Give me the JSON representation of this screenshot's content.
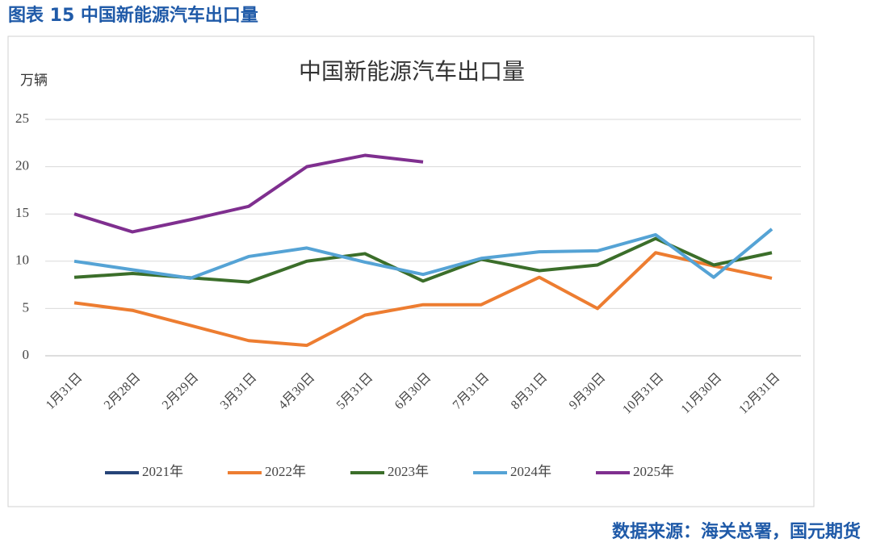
{
  "caption": "图表 15 中国新能源汽车出口量",
  "source": "数据来源：海关总署，国元期货",
  "chart_data": {
    "type": "line",
    "title": "中国新能源汽车出口量",
    "y_label": "万辆",
    "categories": [
      "1月31日",
      "2月28日",
      "2月29日",
      "3月31日",
      "4月30日",
      "5月31日",
      "6月30日",
      "7月31日",
      "8月31日",
      "9月30日",
      "10月31日",
      "11月30日",
      "12月31日"
    ],
    "series": [
      {
        "name": "2021年",
        "color": "#264478",
        "values": [
          null,
          null,
          null,
          null,
          null,
          null,
          null,
          null,
          null,
          null,
          null,
          null,
          null
        ]
      },
      {
        "name": "2022年",
        "color": "#ed7d31",
        "values": [
          5.6,
          4.8,
          3.2,
          1.6,
          1.1,
          4.3,
          5.4,
          5.4,
          8.3,
          5.0,
          10.9,
          9.5,
          8.2
        ]
      },
      {
        "name": "2023年",
        "color": "#3b6e2a",
        "values": [
          8.3,
          8.7,
          8.25,
          7.8,
          10.0,
          10.8,
          7.9,
          10.2,
          9.0,
          9.6,
          12.4,
          9.6,
          10.9
        ]
      },
      {
        "name": "2024年",
        "color": "#55a3d5",
        "values": [
          10.0,
          9.1,
          8.2,
          10.5,
          11.4,
          9.9,
          8.6,
          10.3,
          11.0,
          11.1,
          12.8,
          8.3,
          13.4
        ]
      },
      {
        "name": "2025年",
        "color": "#7f2f8f",
        "values": [
          15.0,
          13.1,
          14.4,
          15.8,
          20.0,
          21.2,
          20.5,
          null,
          null,
          null,
          null,
          null,
          null
        ]
      }
    ],
    "ylim": [
      0,
      25
    ],
    "yticks": [
      0,
      5,
      10,
      15,
      20,
      25
    ],
    "grid": true,
    "legend": "bottom"
  }
}
